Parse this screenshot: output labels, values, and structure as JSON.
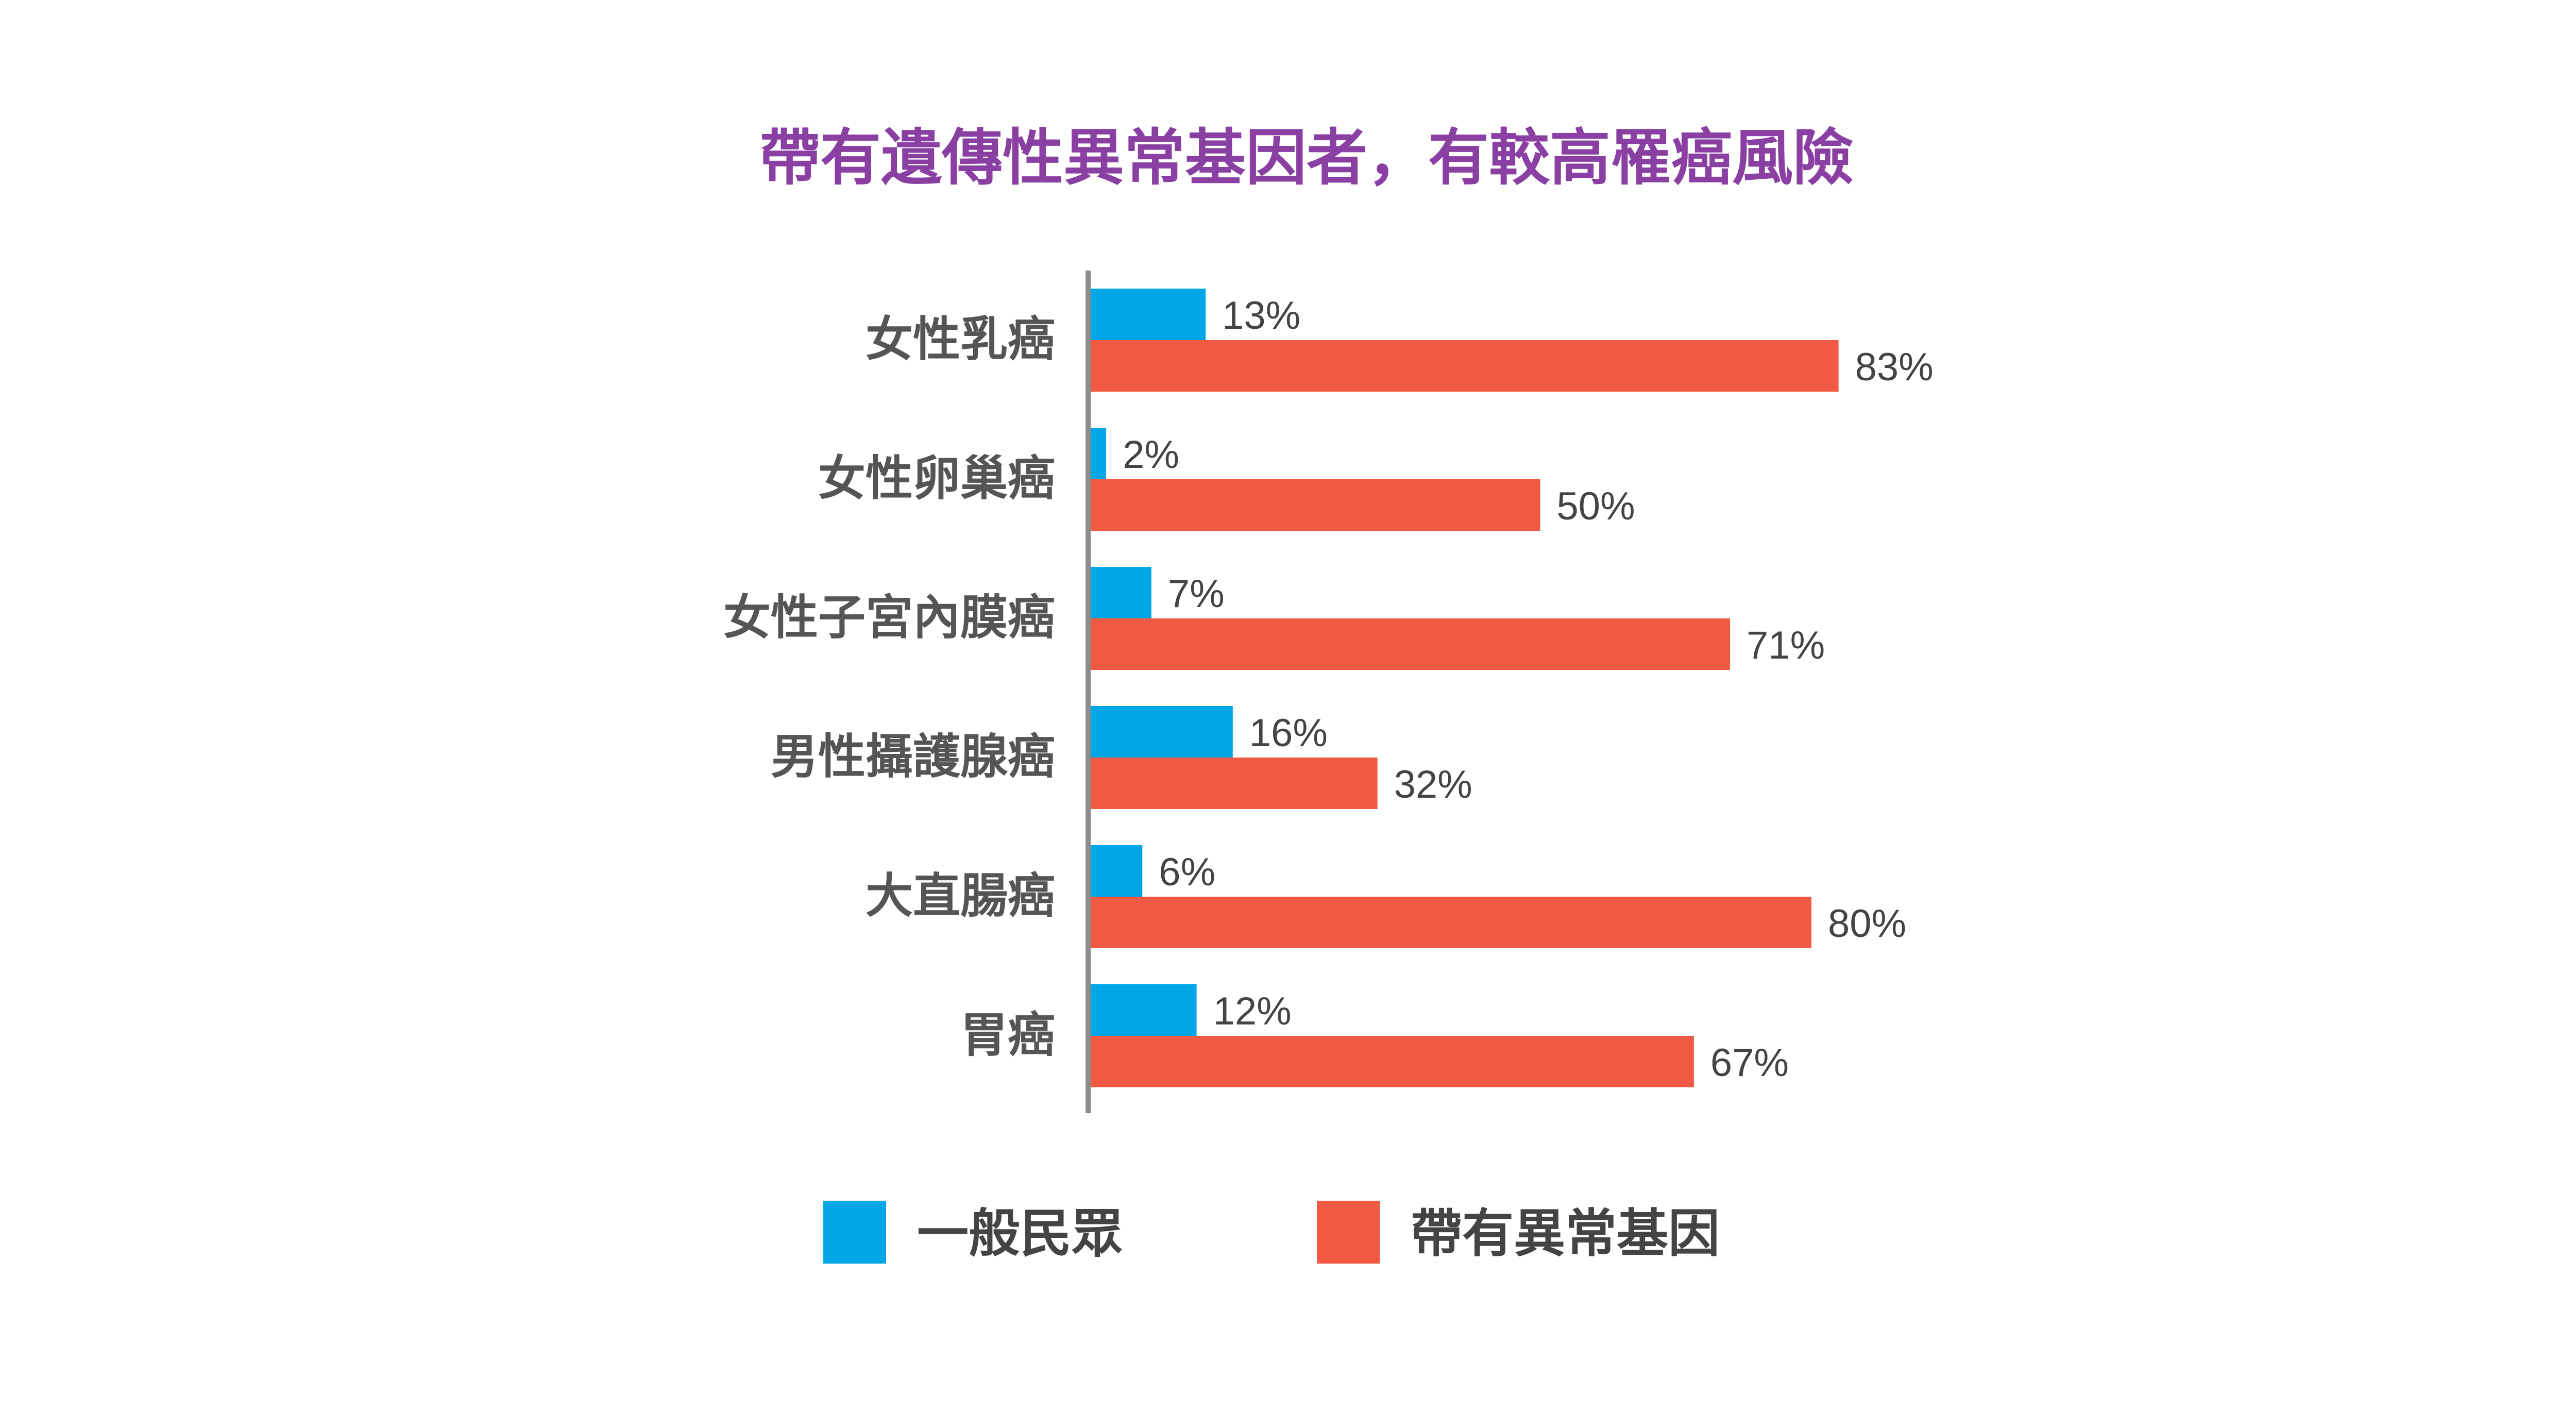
{
  "colors": {
    "title": "#8a3fa3",
    "general_population": "#00a6e6",
    "gene_carrier": "#f15a42",
    "axis": "#8c8c8c",
    "text": "#555555"
  },
  "chart_data": {
    "type": "bar",
    "orientation": "horizontal",
    "title": "帶有遺傳性異常基因者，有較高罹癌風險",
    "xlabel": "",
    "ylabel": "",
    "xlim": [
      0,
      100
    ],
    "grid": false,
    "legend_position": "bottom",
    "categories": [
      "女性乳癌",
      "女性卵巢癌",
      "女性子宮內膜癌",
      "男性攝護腺癌",
      "大直腸癌",
      "胃癌"
    ],
    "series": [
      {
        "name": "一般民眾",
        "values": [
          13,
          2,
          7,
          16,
          6,
          12
        ],
        "labels": [
          "13%",
          "2%",
          "7%",
          "16%",
          "6%",
          "12%"
        ]
      },
      {
        "name": "帶有異常基因",
        "values": [
          83,
          50,
          71,
          32,
          80,
          67
        ],
        "labels": [
          "83%",
          "50%",
          "71%",
          "32%",
          "80%",
          "67%"
        ]
      }
    ]
  }
}
